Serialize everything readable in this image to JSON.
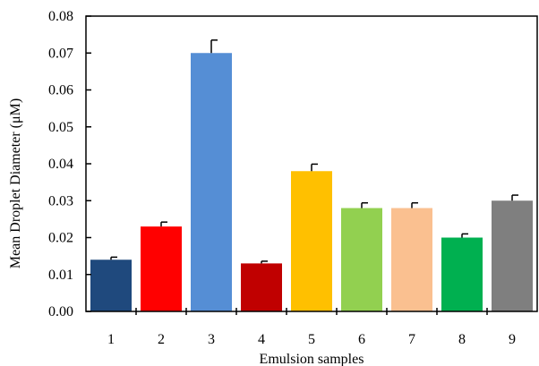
{
  "chart_data": {
    "type": "bar",
    "title": "",
    "xlabel": "Emulsion samples",
    "ylabel": "Mean Droplet Diameter (μM)",
    "categories": [
      "1",
      "2",
      "3",
      "4",
      "5",
      "6",
      "7",
      "8",
      "9"
    ],
    "values": [
      0.014,
      0.023,
      0.07,
      0.013,
      0.038,
      0.028,
      0.028,
      0.02,
      0.03
    ],
    "errors": [
      0.0007,
      0.0012,
      0.0035,
      0.0006,
      0.0019,
      0.0014,
      0.0014,
      0.001,
      0.0015
    ],
    "colors": [
      "#1f497d",
      "#ff0000",
      "#558ed5",
      "#c00000",
      "#ffc000",
      "#92d050",
      "#fac090",
      "#00b050",
      "#7f7f7f"
    ],
    "ylim": [
      0,
      0.08
    ],
    "yticks": [
      "0.00",
      "0.01",
      "0.02",
      "0.03",
      "0.04",
      "0.05",
      "0.06",
      "0.07",
      "0.08"
    ],
    "grid": false,
    "legend": "none",
    "error_bars": true
  }
}
